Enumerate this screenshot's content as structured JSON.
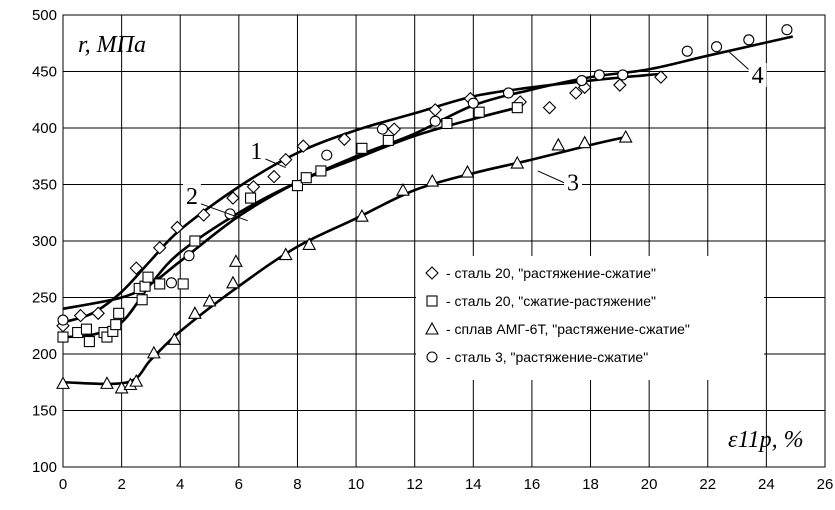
{
  "chart_data": {
    "type": "scatter",
    "title": "",
    "ylabel": "r, МПа",
    "xlabel": "ε11p, %",
    "ylim": [
      100,
      500
    ],
    "xlim": [
      0,
      26
    ],
    "y_ticks": [
      100,
      150,
      200,
      250,
      300,
      350,
      400,
      450,
      500
    ],
    "x_ticks": [
      0,
      2,
      4,
      6,
      8,
      10,
      12,
      14,
      16,
      18,
      20,
      22,
      24,
      26
    ],
    "grid": true,
    "legend_position": "inside-right",
    "series": [
      {
        "name": "- сталь 20, \"растяжение-сжатие\"",
        "marker": "diamond",
        "points": [
          [
            0,
            225
          ],
          [
            0.6,
            234
          ],
          [
            1.2,
            236
          ],
          [
            2.5,
            276
          ],
          [
            3.3,
            294
          ],
          [
            3.9,
            312
          ],
          [
            4.8,
            323
          ],
          [
            5.8,
            338
          ],
          [
            6.5,
            348
          ],
          [
            7.2,
            357
          ],
          [
            7.6,
            372
          ],
          [
            8.2,
            384
          ],
          [
            9.6,
            390
          ],
          [
            11.3,
            399
          ],
          [
            12.7,
            416
          ],
          [
            13.9,
            426
          ],
          [
            15.6,
            423
          ],
          [
            16.6,
            418
          ],
          [
            17.5,
            431
          ],
          [
            17.8,
            436
          ],
          [
            19.0,
            438
          ],
          [
            20.4,
            445
          ]
        ]
      },
      {
        "name": "- сталь 20, \"сжатие-растяжение\"",
        "marker": "square",
        "points": [
          [
            0,
            215
          ],
          [
            0.5,
            219
          ],
          [
            0.8,
            222
          ],
          [
            0.9,
            211
          ],
          [
            1.4,
            219
          ],
          [
            1.5,
            215
          ],
          [
            1.7,
            220
          ],
          [
            1.8,
            226
          ],
          [
            1.9,
            236
          ],
          [
            2.6,
            258
          ],
          [
            2.7,
            248
          ],
          [
            2.8,
            260
          ],
          [
            3.3,
            262
          ],
          [
            2.9,
            268
          ],
          [
            4.1,
            262
          ],
          [
            4.5,
            300
          ],
          [
            6.4,
            338
          ],
          [
            8.0,
            349
          ],
          [
            8.3,
            356
          ],
          [
            8.8,
            362
          ],
          [
            10.2,
            382
          ],
          [
            11.1,
            389
          ],
          [
            13.1,
            404
          ],
          [
            14.2,
            414
          ],
          [
            15.5,
            418
          ]
        ]
      },
      {
        "name": "- сплав АМГ-6Т, \"растяжение-сжатие\"",
        "marker": "triangle",
        "points": [
          [
            0,
            174
          ],
          [
            1.5,
            174
          ],
          [
            2.0,
            170
          ],
          [
            2.3,
            173
          ],
          [
            2.5,
            176
          ],
          [
            3.1,
            201
          ],
          [
            3.8,
            213
          ],
          [
            4.5,
            236
          ],
          [
            5.0,
            247
          ],
          [
            5.8,
            263
          ],
          [
            5.9,
            282
          ],
          [
            7.6,
            288
          ],
          [
            8.4,
            297
          ],
          [
            10.2,
            322
          ],
          [
            11.6,
            345
          ],
          [
            12.6,
            353
          ],
          [
            13.8,
            361
          ],
          [
            15.5,
            369
          ],
          [
            16.9,
            385
          ],
          [
            17.8,
            387
          ],
          [
            19.2,
            392
          ]
        ]
      },
      {
        "name": "- сталь 3, \"растяжение-сжатие\"",
        "marker": "circle",
        "points": [
          [
            0,
            230
          ],
          [
            3.7,
            263
          ],
          [
            4.3,
            287
          ],
          [
            5.7,
            324
          ],
          [
            9.0,
            376
          ],
          [
            10.9,
            399
          ],
          [
            12.7,
            406
          ],
          [
            14.0,
            422
          ],
          [
            15.2,
            431
          ],
          [
            17.7,
            442
          ],
          [
            18.3,
            447
          ],
          [
            19.1,
            447
          ],
          [
            21.3,
            468
          ],
          [
            22.3,
            472
          ],
          [
            23.4,
            478
          ],
          [
            24.7,
            487
          ]
        ]
      }
    ],
    "curves": [
      {
        "id": "1",
        "points": [
          [
            0,
            228
          ],
          [
            1,
            236
          ],
          [
            2,
            255
          ],
          [
            3,
            283
          ],
          [
            4,
            310
          ],
          [
            6,
            348
          ],
          [
            8,
            378
          ],
          [
            10,
            398
          ],
          [
            12,
            413
          ],
          [
            14,
            428
          ],
          [
            16,
            436
          ],
          [
            18,
            442
          ],
          [
            20,
            447
          ],
          [
            20.5,
            448
          ]
        ]
      },
      {
        "id": "2",
        "points": [
          [
            0,
            215
          ],
          [
            1,
            217
          ],
          [
            2,
            228
          ],
          [
            3,
            262
          ],
          [
            4,
            290
          ],
          [
            6,
            325
          ],
          [
            8,
            352
          ],
          [
            10,
            373
          ],
          [
            12,
            393
          ],
          [
            14,
            408
          ],
          [
            15.5,
            418
          ]
        ]
      },
      {
        "id": "3",
        "points": [
          [
            0,
            175
          ],
          [
            2.2,
            175
          ],
          [
            3,
            195
          ],
          [
            4,
            220
          ],
          [
            6,
            260
          ],
          [
            8,
            295
          ],
          [
            10,
            320
          ],
          [
            12,
            345
          ],
          [
            14,
            360
          ],
          [
            16,
            372
          ],
          [
            18,
            385
          ],
          [
            19.2,
            392
          ]
        ]
      },
      {
        "id": "4",
        "points": [
          [
            0,
            240
          ],
          [
            2,
            250
          ],
          [
            3,
            262
          ],
          [
            4,
            282
          ],
          [
            6,
            322
          ],
          [
            8,
            352
          ],
          [
            10,
            375
          ],
          [
            12,
            395
          ],
          [
            14,
            420
          ],
          [
            16,
            434
          ],
          [
            18,
            445
          ],
          [
            20,
            452
          ],
          [
            22,
            464
          ],
          [
            24.9,
            481
          ]
        ]
      }
    ],
    "curve_labels": [
      {
        "text": "1",
        "x": 6.6,
        "y": 378,
        "line_to": [
          7.6,
          365
        ]
      },
      {
        "text": "2",
        "x": 4.4,
        "y": 338,
        "line_to": [
          6.3,
          318
        ]
      },
      {
        "text": "3",
        "x": 17.4,
        "y": 350,
        "line_to": [
          16.2,
          362
        ]
      },
      {
        "text": "4",
        "x": 23.7,
        "y": 445,
        "line_to": [
          22.7,
          468
        ]
      }
    ]
  }
}
